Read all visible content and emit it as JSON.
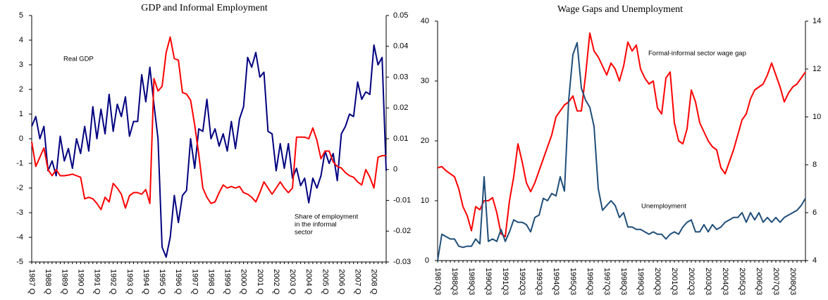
{
  "chart_data": [
    {
      "type": "line",
      "title": "GDP and Informal Employment",
      "categories": [
        "1987 Q",
        null,
        null,
        null,
        "1988 Q",
        null,
        null,
        null,
        "1989 Q",
        null,
        null,
        null,
        "1990 Q",
        null,
        null,
        null,
        "1991 Q",
        null,
        null,
        null,
        "1992 Q",
        null,
        null,
        null,
        "1993 Q",
        null,
        null,
        null,
        "1994 Q",
        null,
        null,
        null,
        "1995 Q",
        null,
        null,
        null,
        "1996 Q",
        null,
        null,
        null,
        "1997 Q",
        null,
        null,
        null,
        "1998 Q",
        null,
        null,
        null,
        "1999 Q",
        null,
        null,
        null,
        "2000 Q",
        null,
        null,
        null,
        "2001 Q",
        null,
        null,
        null,
        "2002 Q",
        null,
        null,
        null,
        "2003 Q",
        null,
        null,
        null,
        "2004 Q",
        null,
        null,
        null,
        "2005 Q",
        null,
        null,
        null,
        "2006 Q",
        null,
        null,
        null,
        "2007 Q",
        null,
        null,
        null,
        "2008 Q",
        null,
        null,
        null
      ],
      "series": [
        {
          "name": "Real GDP",
          "color": "#00007f",
          "axis": "y",
          "values": [
            0.5,
            0.9,
            0,
            0.5,
            -1.3,
            -0.9,
            -1.5,
            0.1,
            -0.9,
            -0.4,
            -1.2,
            0,
            -0.6,
            0.5,
            -0.5,
            1.3,
            0,
            1.2,
            0.2,
            1.8,
            0.3,
            1.4,
            0.9,
            1.7,
            0.1,
            0.7,
            0.7,
            2.6,
            1.5,
            2.9,
            1.4,
            0,
            -4.4,
            -4.8,
            -4,
            -2.3,
            -3.4,
            -2.3,
            -2.1,
            0,
            -1.2,
            0.4,
            0.3,
            1.6,
            0,
            0.4,
            -0.3,
            0.2,
            -0.5,
            0.7,
            -0.4,
            0.8,
            1.3,
            3.3,
            2.9,
            3.5,
            2.5,
            2.7,
            0.3,
            0.2,
            -1.3,
            -0.2,
            -1.2,
            -0.2,
            -1.6,
            -1.2,
            -1.9,
            -1.6,
            -2.6,
            -1.6,
            -2,
            -1.5,
            -0.5,
            -1,
            -0.6,
            -1.7,
            0.2,
            0.5,
            1,
            0.9,
            2.3,
            1.6,
            1.9,
            1.8,
            3.8,
            3,
            3.3,
            -1.3
          ]
        },
        {
          "name": "Share of employment in the informal sector",
          "color": "#ff0000",
          "axis": "y2",
          "values": [
            0.009,
            0.001,
            0.004,
            0.007,
            0,
            -0.002,
            0,
            -0.002,
            -0.002,
            -0.0018,
            -0.0015,
            -0.002,
            -0.0025,
            -0.0095,
            -0.009,
            -0.0095,
            -0.011,
            -0.013,
            -0.009,
            -0.0105,
            -0.0045,
            -0.006,
            -0.008,
            -0.0125,
            -0.0085,
            -0.0075,
            -0.0075,
            -0.008,
            -0.0065,
            -0.011,
            0.0295,
            0.0255,
            0.027,
            0.038,
            0.043,
            0.036,
            0.0355,
            0.025,
            0.0245,
            0.0225,
            0.0145,
            0.005,
            -0.006,
            -0.009,
            -0.011,
            -0.0105,
            -0.0075,
            -0.005,
            -0.006,
            -0.0055,
            -0.006,
            -0.0055,
            -0.0075,
            -0.008,
            -0.009,
            -0.0105,
            -0.0075,
            -0.004,
            -0.006,
            -0.008,
            -0.006,
            -0.004,
            -0.006,
            -0.0075,
            -0.006,
            0.0105,
            0.0105,
            0.0105,
            0.01,
            0.0135,
            0.0095,
            0.0035,
            0.006,
            0.006,
            0.0025,
            0.001,
            0.0005,
            -0.001,
            -0.002,
            -0.0025,
            -0.004,
            -0.005,
            0,
            -0.0025,
            -0.006,
            0.004,
            0.0045,
            0.0045
          ]
        }
      ],
      "annotations": [
        [
          "Real GDP"
        ],
        [
          "Share of employment",
          "in the informal",
          "sector"
        ]
      ],
      "ylim": [
        -5,
        5
      ],
      "yticks": [
        -5,
        -4,
        -3,
        -2,
        -1,
        0,
        1,
        2,
        3,
        4,
        5
      ],
      "y2lim": [
        -0.03,
        0.05
      ],
      "y2ticks": [
        -0.03,
        -0.02,
        -0.01,
        0,
        0.01,
        0.02,
        0.03,
        0.04,
        0.05
      ]
    },
    {
      "type": "line",
      "title": "Wage Gaps and Unemployment",
      "categories": [
        "1987Q3",
        null,
        null,
        null,
        "1988Q3",
        null,
        null,
        null,
        "1989Q3",
        null,
        null,
        null,
        "1990Q3",
        null,
        null,
        null,
        "1991Q3",
        null,
        null,
        null,
        "1992Q3",
        null,
        null,
        null,
        "1993Q3",
        null,
        null,
        null,
        "1994Q3",
        null,
        null,
        null,
        "1995Q3",
        null,
        null,
        null,
        "1996Q3",
        null,
        null,
        null,
        "1997Q3",
        null,
        null,
        null,
        "1998Q3",
        null,
        null,
        null,
        "1999Q3",
        null,
        null,
        null,
        "2000Q3",
        null,
        null,
        null,
        "2001Q3",
        null,
        null,
        null,
        "2002Q3",
        null,
        null,
        null,
        "2003Q3",
        null,
        null,
        null,
        "2004Q3",
        null,
        null,
        null,
        "2005Q3",
        null,
        null,
        null,
        "2006Q3",
        null,
        null,
        null,
        "2007Q3",
        null,
        null,
        null,
        "2008Q3",
        null,
        null,
        null
      ],
      "series": [
        {
          "name": "Formal-informal sector wage gap",
          "color": "#ff0000",
          "axis": "y",
          "values": [
            15.5,
            15.7,
            15,
            14.5,
            14,
            12,
            9,
            7.5,
            5,
            9,
            8.5,
            10,
            10,
            10.5,
            8,
            4.5,
            4,
            10,
            14,
            19.5,
            16.5,
            13,
            11.5,
            13,
            15,
            17,
            19,
            21,
            24,
            25,
            26,
            26.5,
            27.5,
            25,
            25,
            31,
            38,
            35,
            34,
            32.5,
            31,
            33,
            32,
            30,
            32.5,
            36.5,
            35,
            36,
            32,
            30.5,
            29.5,
            30,
            25.5,
            24.5,
            30.5,
            31.5,
            23,
            20,
            19.5,
            22,
            28.5,
            26.5,
            23,
            21.5,
            20,
            19,
            18.5,
            15.5,
            14.5,
            16.5,
            18.5,
            21,
            23.5,
            24.5,
            27,
            28.5,
            29,
            29.5,
            31,
            33,
            31,
            29,
            26.5,
            28,
            29,
            29.5,
            30.5,
            31.5
          ]
        },
        {
          "name": "Unemployment",
          "color": "#1f4e79",
          "axis": "y2",
          "values": [
            4,
            5.1,
            5,
            4.9,
            4.9,
            4.6,
            4.55,
            4.6,
            4.6,
            4.9,
            4.7,
            7.5,
            4.8,
            4.9,
            4.8,
            5.3,
            4.8,
            5.2,
            5.7,
            5.6,
            5.6,
            5.5,
            5.2,
            5.8,
            5.9,
            6.6,
            6.5,
            6.8,
            6.7,
            7.5,
            6.9,
            10.7,
            12.6,
            13.1,
            11.2,
            10.7,
            10.4,
            9.6,
            7,
            6.1,
            6.3,
            6.5,
            6.3,
            5.8,
            6,
            5.4,
            5.4,
            5.3,
            5.3,
            5.2,
            5.1,
            5.2,
            5.1,
            5.1,
            4.9,
            5.1,
            5.2,
            5.1,
            5.4,
            5.6,
            5.7,
            5.2,
            5.2,
            5.5,
            5.2,
            5.5,
            5.3,
            5.4,
            5.6,
            5.7,
            5.8,
            5.8,
            6,
            5.6,
            6,
            5.7,
            6,
            5.6,
            5.8,
            5.6,
            5.8,
            5.6,
            5.8,
            5.9,
            6,
            6.1,
            6.3,
            6.6
          ]
        }
      ],
      "annotations": [
        [
          "Formal-informal sector wage gap"
        ],
        [
          "Unemployment"
        ]
      ],
      "ylim": [
        0,
        40
      ],
      "yticks": [
        0,
        10,
        20,
        30,
        40
      ],
      "y2lim": [
        4,
        14
      ],
      "y2ticks": [
        4,
        6,
        8,
        10,
        12,
        14
      ]
    }
  ]
}
